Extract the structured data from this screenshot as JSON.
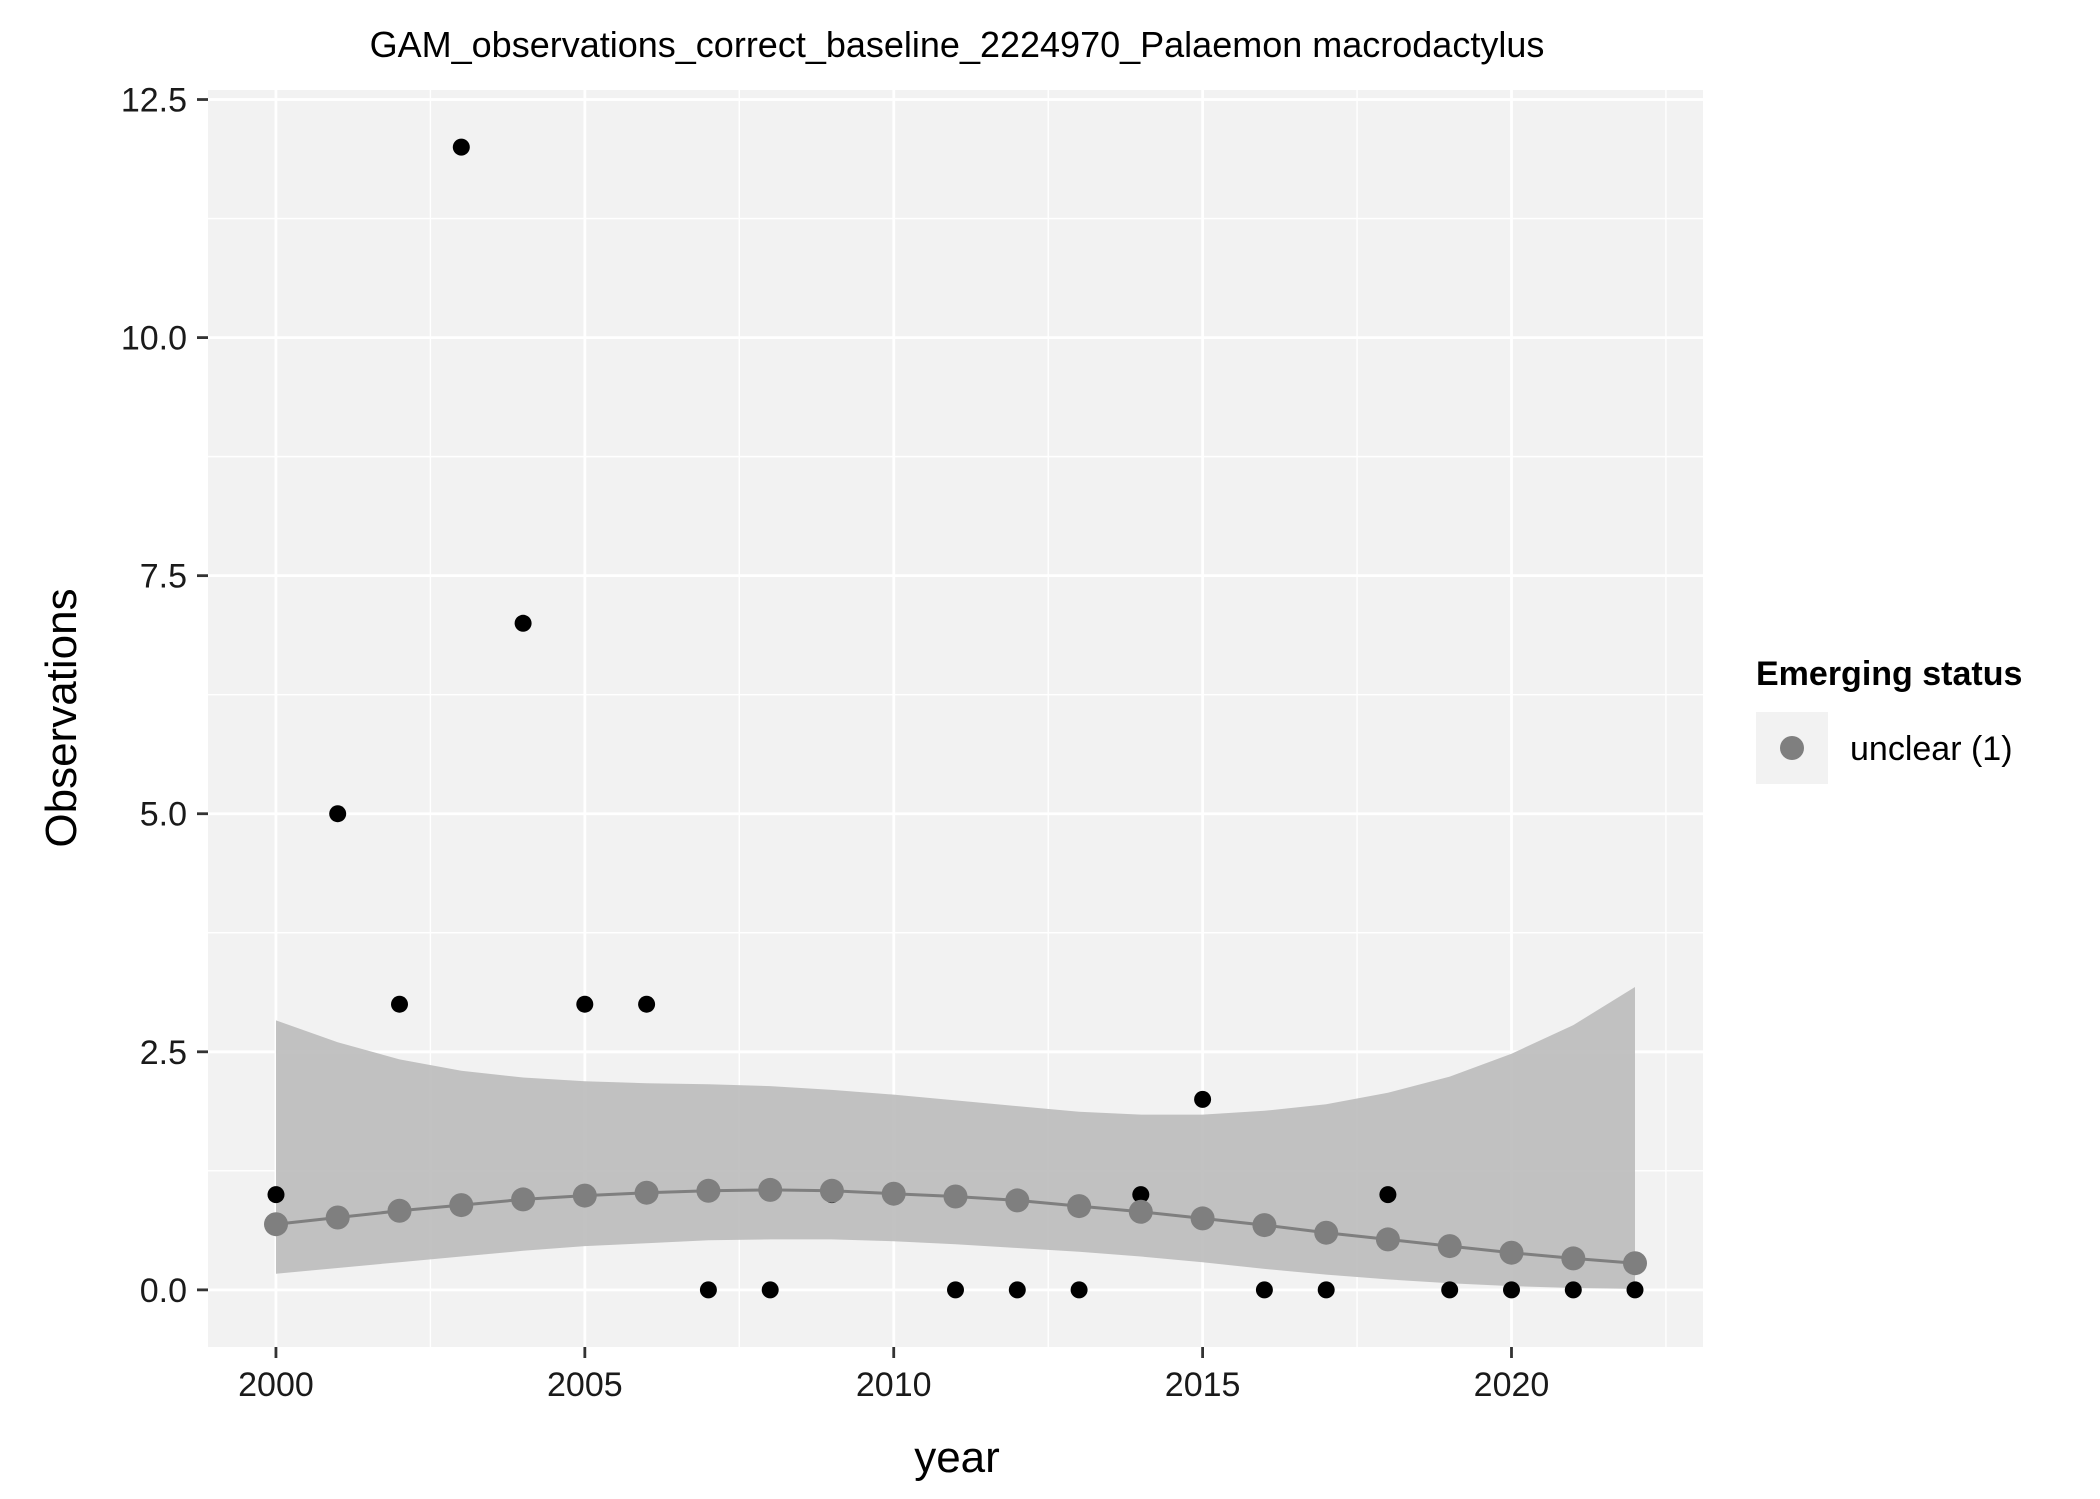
{
  "chart_data": {
    "type": "scatter",
    "title": "GAM_observations_correct_baseline_2224970_Palaemon macrodactylus",
    "xlabel": "year",
    "ylabel": "Observations",
    "xlim": [
      1998.9,
      2023.1
    ],
    "ylim": [
      -0.6,
      12.6
    ],
    "x_ticks": [
      2000,
      2005,
      2010,
      2015,
      2020
    ],
    "x_tick_labels": [
      "2000",
      "2005",
      "2010",
      "2015",
      "2020"
    ],
    "y_ticks": [
      0,
      2.5,
      5,
      7.5,
      10,
      12.5
    ],
    "y_tick_labels": [
      "0.0",
      "2.5",
      "5.0",
      "7.5",
      "10.0",
      "12.5"
    ],
    "grid": true,
    "legend": {
      "title": "Emerging status",
      "position": "right",
      "entries": [
        {
          "label": "unclear (1)",
          "color": "#7f7f7f"
        }
      ]
    },
    "observations": {
      "name": "observations",
      "color": "#000000",
      "points": [
        {
          "x": 2000,
          "y": 1
        },
        {
          "x": 2001,
          "y": 5
        },
        {
          "x": 2002,
          "y": 3
        },
        {
          "x": 2003,
          "y": 12
        },
        {
          "x": 2004,
          "y": 7
        },
        {
          "x": 2005,
          "y": 3
        },
        {
          "x": 2006,
          "y": 3
        },
        {
          "x": 2007,
          "y": 0
        },
        {
          "x": 2008,
          "y": 0
        },
        {
          "x": 2009,
          "y": 1
        },
        {
          "x": 2011,
          "y": 0
        },
        {
          "x": 2012,
          "y": 0
        },
        {
          "x": 2013,
          "y": 0
        },
        {
          "x": 2014,
          "y": 1
        },
        {
          "x": 2015,
          "y": 2
        },
        {
          "x": 2016,
          "y": 0
        },
        {
          "x": 2017,
          "y": 0
        },
        {
          "x": 2018,
          "y": 1
        },
        {
          "x": 2019,
          "y": 0
        },
        {
          "x": 2020,
          "y": 0
        },
        {
          "x": 2021,
          "y": 0
        },
        {
          "x": 2022,
          "y": 0
        }
      ]
    },
    "fit": {
      "name": "unclear (1)",
      "color": "#7f7f7f",
      "band_color": "#bdbdbd",
      "x": [
        2000,
        2001,
        2002,
        2003,
        2004,
        2005,
        2006,
        2007,
        2008,
        2009,
        2010,
        2011,
        2012,
        2013,
        2014,
        2015,
        2016,
        2017,
        2018,
        2019,
        2020,
        2021,
        2022
      ],
      "y": [
        0.69,
        0.76,
        0.83,
        0.89,
        0.95,
        0.99,
        1.02,
        1.04,
        1.05,
        1.04,
        1.01,
        0.98,
        0.94,
        0.88,
        0.82,
        0.75,
        0.68,
        0.6,
        0.53,
        0.46,
        0.39,
        0.33,
        0.28
      ],
      "lower": [
        0.17,
        0.23,
        0.29,
        0.35,
        0.41,
        0.46,
        0.49,
        0.52,
        0.53,
        0.53,
        0.51,
        0.48,
        0.44,
        0.4,
        0.35,
        0.29,
        0.22,
        0.16,
        0.11,
        0.07,
        0.04,
        0.02,
        0.01
      ],
      "upper": [
        2.83,
        2.6,
        2.42,
        2.3,
        2.23,
        2.19,
        2.17,
        2.16,
        2.14,
        2.1,
        2.05,
        1.99,
        1.93,
        1.87,
        1.84,
        1.84,
        1.88,
        1.95,
        2.07,
        2.24,
        2.48,
        2.78,
        3.18
      ]
    }
  }
}
